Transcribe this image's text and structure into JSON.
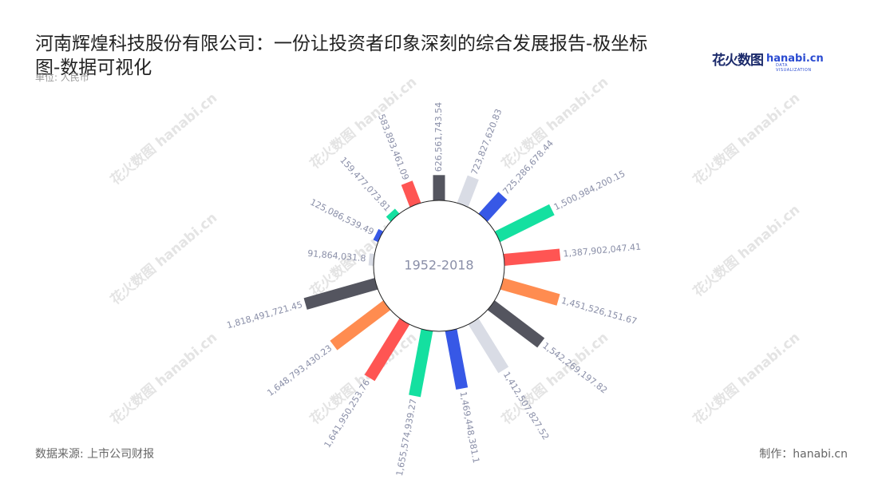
{
  "title": "河南辉煌科技股份有限公司：一份让投资者印象深刻的综合发展报告-极坐标图-数据可视化",
  "unit": "单位: 人民币",
  "brand": {
    "cn": "花火数图",
    "en": "hanabi.cn",
    "sub": "DATA VISUALIZATION"
  },
  "footer": {
    "source": "数据来源: 上市公司财报",
    "maker": "制作：hanabi.cn"
  },
  "watermark": "花火数图 hanabi.cn",
  "chart_data": {
    "type": "bar",
    "polar": true,
    "center_label": "1952-2018",
    "values": [
      626561743.54,
      723827620.83,
      725286678.44,
      1500984200.15,
      1387902047.41,
      1451526151.67,
      1542269197.82,
      1412507827.52,
      1469448381.1,
      1655574939.27,
      1641950253.76,
      1648793430.23,
      1818491721.45,
      91864031.8,
      125086539.49,
      159477073.81,
      583893461.09
    ],
    "labels": [
      "626,561,743.54",
      "723,827,620.83",
      "725,286,678.44",
      "1,500,984,200.15",
      "1,387,902,047.41",
      "1,451,526,151.67",
      "1,542,269,197.82",
      "1,412,507,827.52",
      "1,469,448,381.1",
      "1,655,574,939.27",
      "1,641,950,253.76",
      "1,648,793,430.23",
      "1,818,491,721.45",
      "91,864,031.8",
      "125,086,539.49",
      "159,477,073.81",
      "583,893,461.09"
    ],
    "colors": [
      "#54555f",
      "#d9dce5",
      "#3758e6",
      "#14e0a0",
      "#ff5553",
      "#ff8c50"
    ],
    "label_color": "#8a8fa8"
  }
}
